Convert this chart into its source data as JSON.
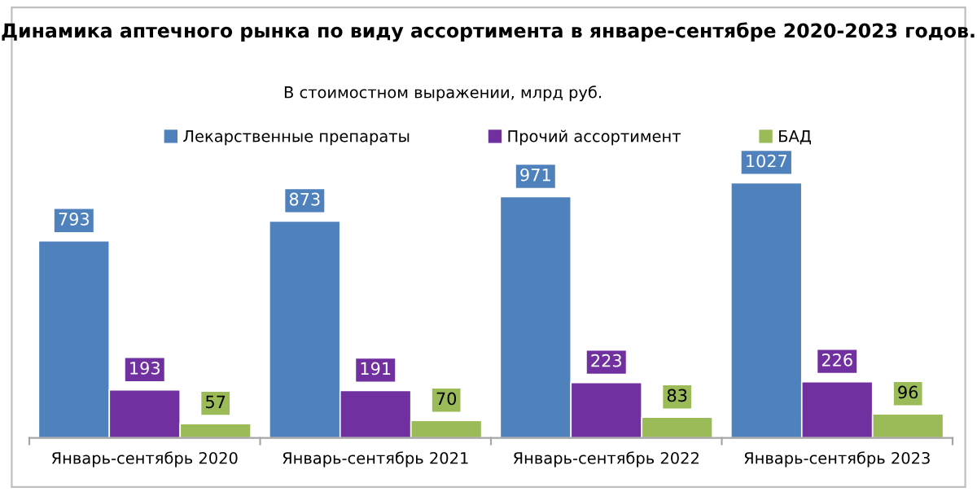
{
  "chart_data": {
    "type": "bar",
    "title": "Динамика аптечного рынка по виду ассортимента в январе-сентябре 2020-2023 годов.",
    "subtitle": "В стоимостном выражении, млрд руб.",
    "categories": [
      "Январь-сентябрь 2020",
      "Январь-сентябрь 2021",
      "Январь-сентябрь 2022",
      "Январь-сентябрь 2023"
    ],
    "series": [
      {
        "name": "Лекарственные препараты",
        "color": "#4f81bd",
        "values": [
          793,
          873,
          971,
          1027
        ]
      },
      {
        "name": "Прочий ассортимент",
        "color": "#7030a0",
        "values": [
          193,
          191,
          223,
          226
        ]
      },
      {
        "name": "БАД",
        "color": "#9bbb59",
        "values": [
          57,
          70,
          83,
          96
        ]
      }
    ],
    "data_labels": true,
    "legend": "top",
    "grid": false
  }
}
